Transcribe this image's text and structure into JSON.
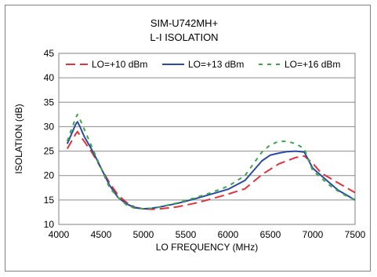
{
  "chart_data": {
    "type": "line",
    "title": "SIM-U742MH+",
    "subtitle": "L-I ISOLATION",
    "xlabel": "LO FREQUENCY (MHz)",
    "ylabel": "ISOLATION (dB)",
    "xlim": [
      4000,
      7500
    ],
    "ylim": [
      10,
      45
    ],
    "xticks": [
      4000,
      4500,
      5000,
      5500,
      6000,
      6500,
      7000,
      7500
    ],
    "yticks": [
      10,
      15,
      20,
      25,
      30,
      35,
      40,
      45
    ],
    "grid": "horizontal",
    "legend_position": "top",
    "series": [
      {
        "name": "LO=+10 dBm",
        "color": "#e0333b",
        "dash": "dashed",
        "x": [
          4100,
          4150,
          4200,
          4220,
          4250,
          4300,
          4400,
          4500,
          4600,
          4700,
          4800,
          4900,
          5000,
          5100,
          5200,
          5400,
          5600,
          5800,
          6000,
          6200,
          6400,
          6600,
          6800,
          6900,
          7000,
          7100,
          7200,
          7300,
          7400,
          7500
        ],
        "y": [
          25.5,
          27.0,
          28.5,
          29.0,
          28.2,
          27.0,
          24.5,
          21.5,
          18.5,
          16.0,
          14.5,
          13.5,
          13.2,
          13.1,
          13.2,
          13.6,
          14.3,
          15.2,
          16.2,
          17.3,
          20.2,
          22.4,
          23.7,
          24.0,
          22.5,
          20.5,
          19.5,
          18.5,
          17.5,
          16.5
        ]
      },
      {
        "name": "LO=+13 dBm",
        "color": "#2b4aa3",
        "dash": "solid",
        "x": [
          4100,
          4150,
          4200,
          4220,
          4250,
          4300,
          4400,
          4500,
          4600,
          4700,
          4800,
          4900,
          5000,
          5100,
          5200,
          5400,
          5600,
          5800,
          6000,
          6200,
          6400,
          6500,
          6600,
          6700,
          6800,
          6900,
          7000,
          7100,
          7200,
          7300,
          7400,
          7500
        ],
        "y": [
          26.5,
          28.5,
          30.5,
          31.0,
          30.0,
          28.0,
          25.0,
          21.5,
          18.0,
          15.5,
          14.2,
          13.4,
          13.2,
          13.3,
          13.6,
          14.3,
          15.2,
          16.2,
          17.2,
          19.0,
          23.0,
          24.2,
          24.6,
          24.9,
          25.0,
          24.8,
          21.5,
          20.0,
          18.5,
          17.0,
          16.0,
          15.0
        ]
      },
      {
        "name": "LO=+16 dBm",
        "color": "#3aa845",
        "dash": "dotted",
        "x": [
          4100,
          4150,
          4200,
          4220,
          4250,
          4300,
          4400,
          4500,
          4600,
          4700,
          4800,
          4900,
          5000,
          5100,
          5200,
          5400,
          5600,
          5800,
          6000,
          6200,
          6400,
          6500,
          6600,
          6700,
          6800,
          6900,
          7000,
          7100,
          7200,
          7300,
          7400,
          7500
        ],
        "y": [
          27.0,
          29.5,
          31.8,
          32.5,
          31.5,
          29.5,
          25.5,
          21.5,
          17.5,
          15.5,
          14.0,
          13.3,
          13.2,
          13.3,
          13.6,
          14.4,
          15.4,
          16.5,
          17.8,
          20.0,
          24.8,
          26.3,
          27.0,
          27.0,
          26.5,
          25.5,
          21.0,
          19.5,
          18.0,
          16.8,
          15.8,
          15.0
        ]
      }
    ]
  }
}
